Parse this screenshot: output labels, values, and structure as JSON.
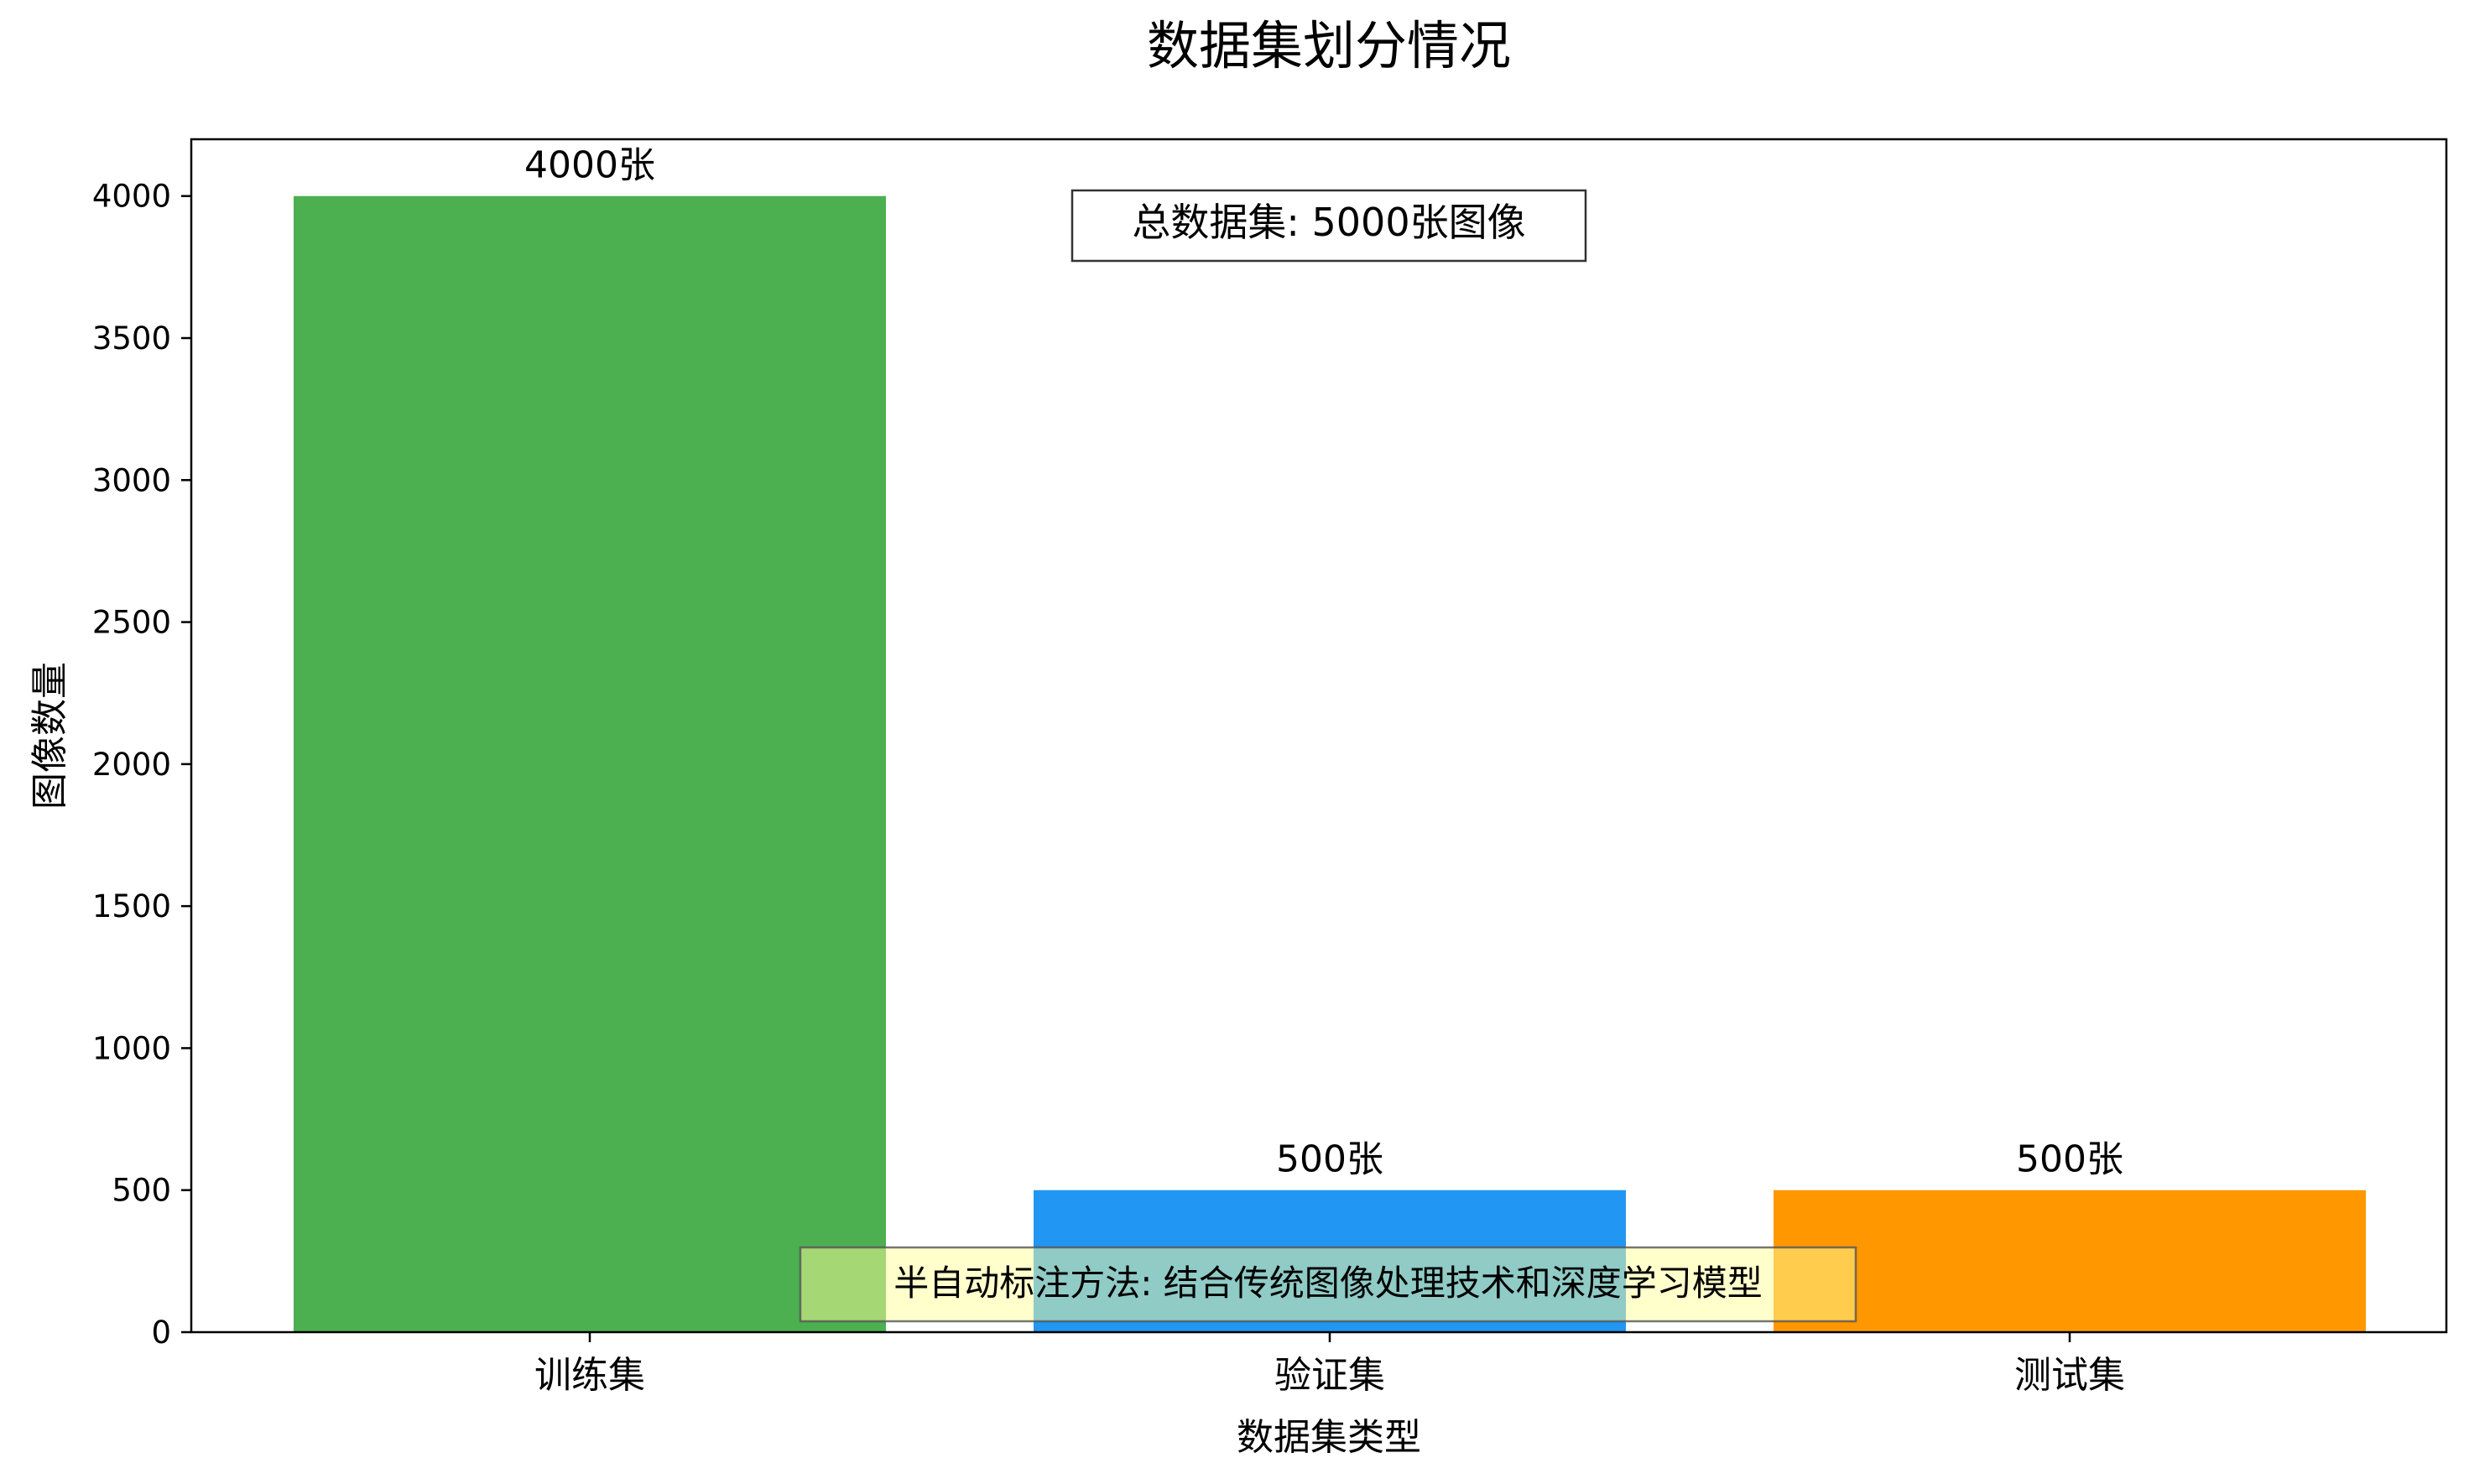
{
  "chart_data": {
    "type": "bar",
    "title": "数据集划分情况",
    "xlabel": "数据集类型",
    "ylabel": "图像数量",
    "categories": [
      "训练集",
      "验证集",
      "测试集"
    ],
    "values": [
      4000,
      500,
      500
    ],
    "value_labels": [
      "4000张",
      "500张",
      "500张"
    ],
    "colors": [
      "#4caf50",
      "#2196f3",
      "#ff9800"
    ],
    "ylim": [
      0,
      4200
    ],
    "yticks": [
      0,
      500,
      1000,
      1500,
      2000,
      2500,
      3000,
      3500,
      4000
    ],
    "grid": false,
    "annotations": {
      "total": "总数据集: 5000张图像",
      "method": "半自动标注方法: 结合传统图像处理技术和深度学习模型"
    },
    "annotation_colors": {
      "total_box_fill": "#ffffff",
      "total_box_edge": "#333333",
      "method_box_fill": "#ffff99",
      "method_box_edge": "#555555"
    }
  }
}
